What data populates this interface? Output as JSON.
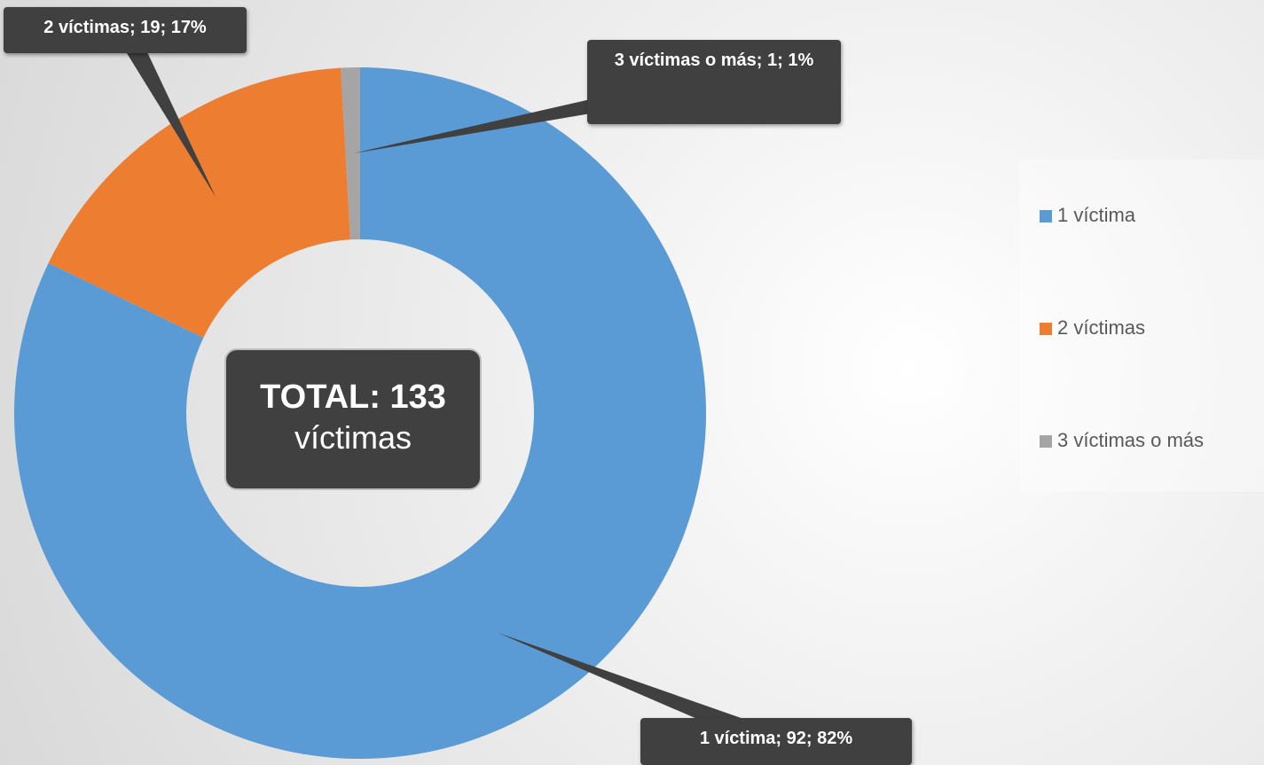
{
  "chart_data": {
    "type": "donut",
    "categories": [
      "1 víctima",
      "2 víctimas",
      "3 víctimas o más"
    ],
    "values": [
      92,
      19,
      1
    ],
    "value_labels": [
      "1 víctima; 92; 82%",
      "2 víctimas; 19; 17%",
      "3 víctimas o más; 1; 1%"
    ],
    "colors": [
      "#5b9bd5",
      "#ed7d31",
      "#a5a5a5"
    ],
    "center_label": {
      "title": "TOTAL: 133",
      "subtitle": "víctimas"
    },
    "legend": "right"
  }
}
